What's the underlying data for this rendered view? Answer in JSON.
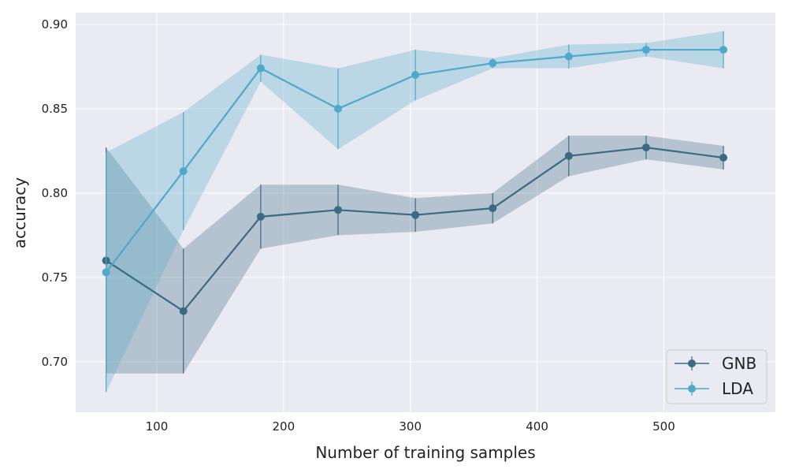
{
  "chart_data": {
    "type": "line",
    "xlabel": "Number of training samples",
    "ylabel": "accuracy",
    "xlim": [
      36,
      588
    ],
    "ylim": [
      0.67,
      0.907
    ],
    "xticks": [
      100,
      200,
      300,
      400,
      500
    ],
    "yticks": [
      0.7,
      0.75,
      0.8,
      0.85,
      0.9
    ],
    "xtick_labels": [
      "100",
      "200",
      "300",
      "400",
      "500"
    ],
    "ytick_labels": [
      "0.70",
      "0.75",
      "0.80",
      "0.85",
      "0.90"
    ],
    "grid": true,
    "legend_position": "lower-right",
    "x": [
      60,
      121,
      182,
      243,
      304,
      365,
      425,
      486,
      547
    ],
    "series": [
      {
        "name": "GNB",
        "color": "#3a6b82",
        "values": [
          0.76,
          0.73,
          0.786,
          0.79,
          0.787,
          0.791,
          0.822,
          0.827,
          0.821
        ],
        "err": [
          0.067,
          0.037,
          0.019,
          0.015,
          0.01,
          0.009,
          0.012,
          0.007,
          0.007
        ]
      },
      {
        "name": "LDA",
        "color": "#4eaac8",
        "values": [
          0.753,
          0.813,
          0.874,
          0.85,
          0.87,
          0.877,
          0.881,
          0.885,
          0.885
        ],
        "err": [
          0.071,
          0.035,
          0.008,
          0.024,
          0.015,
          0.003,
          0.007,
          0.004,
          0.011
        ]
      }
    ],
    "plot_background": "#eaeaf2",
    "grid_color": "#ffffff"
  }
}
